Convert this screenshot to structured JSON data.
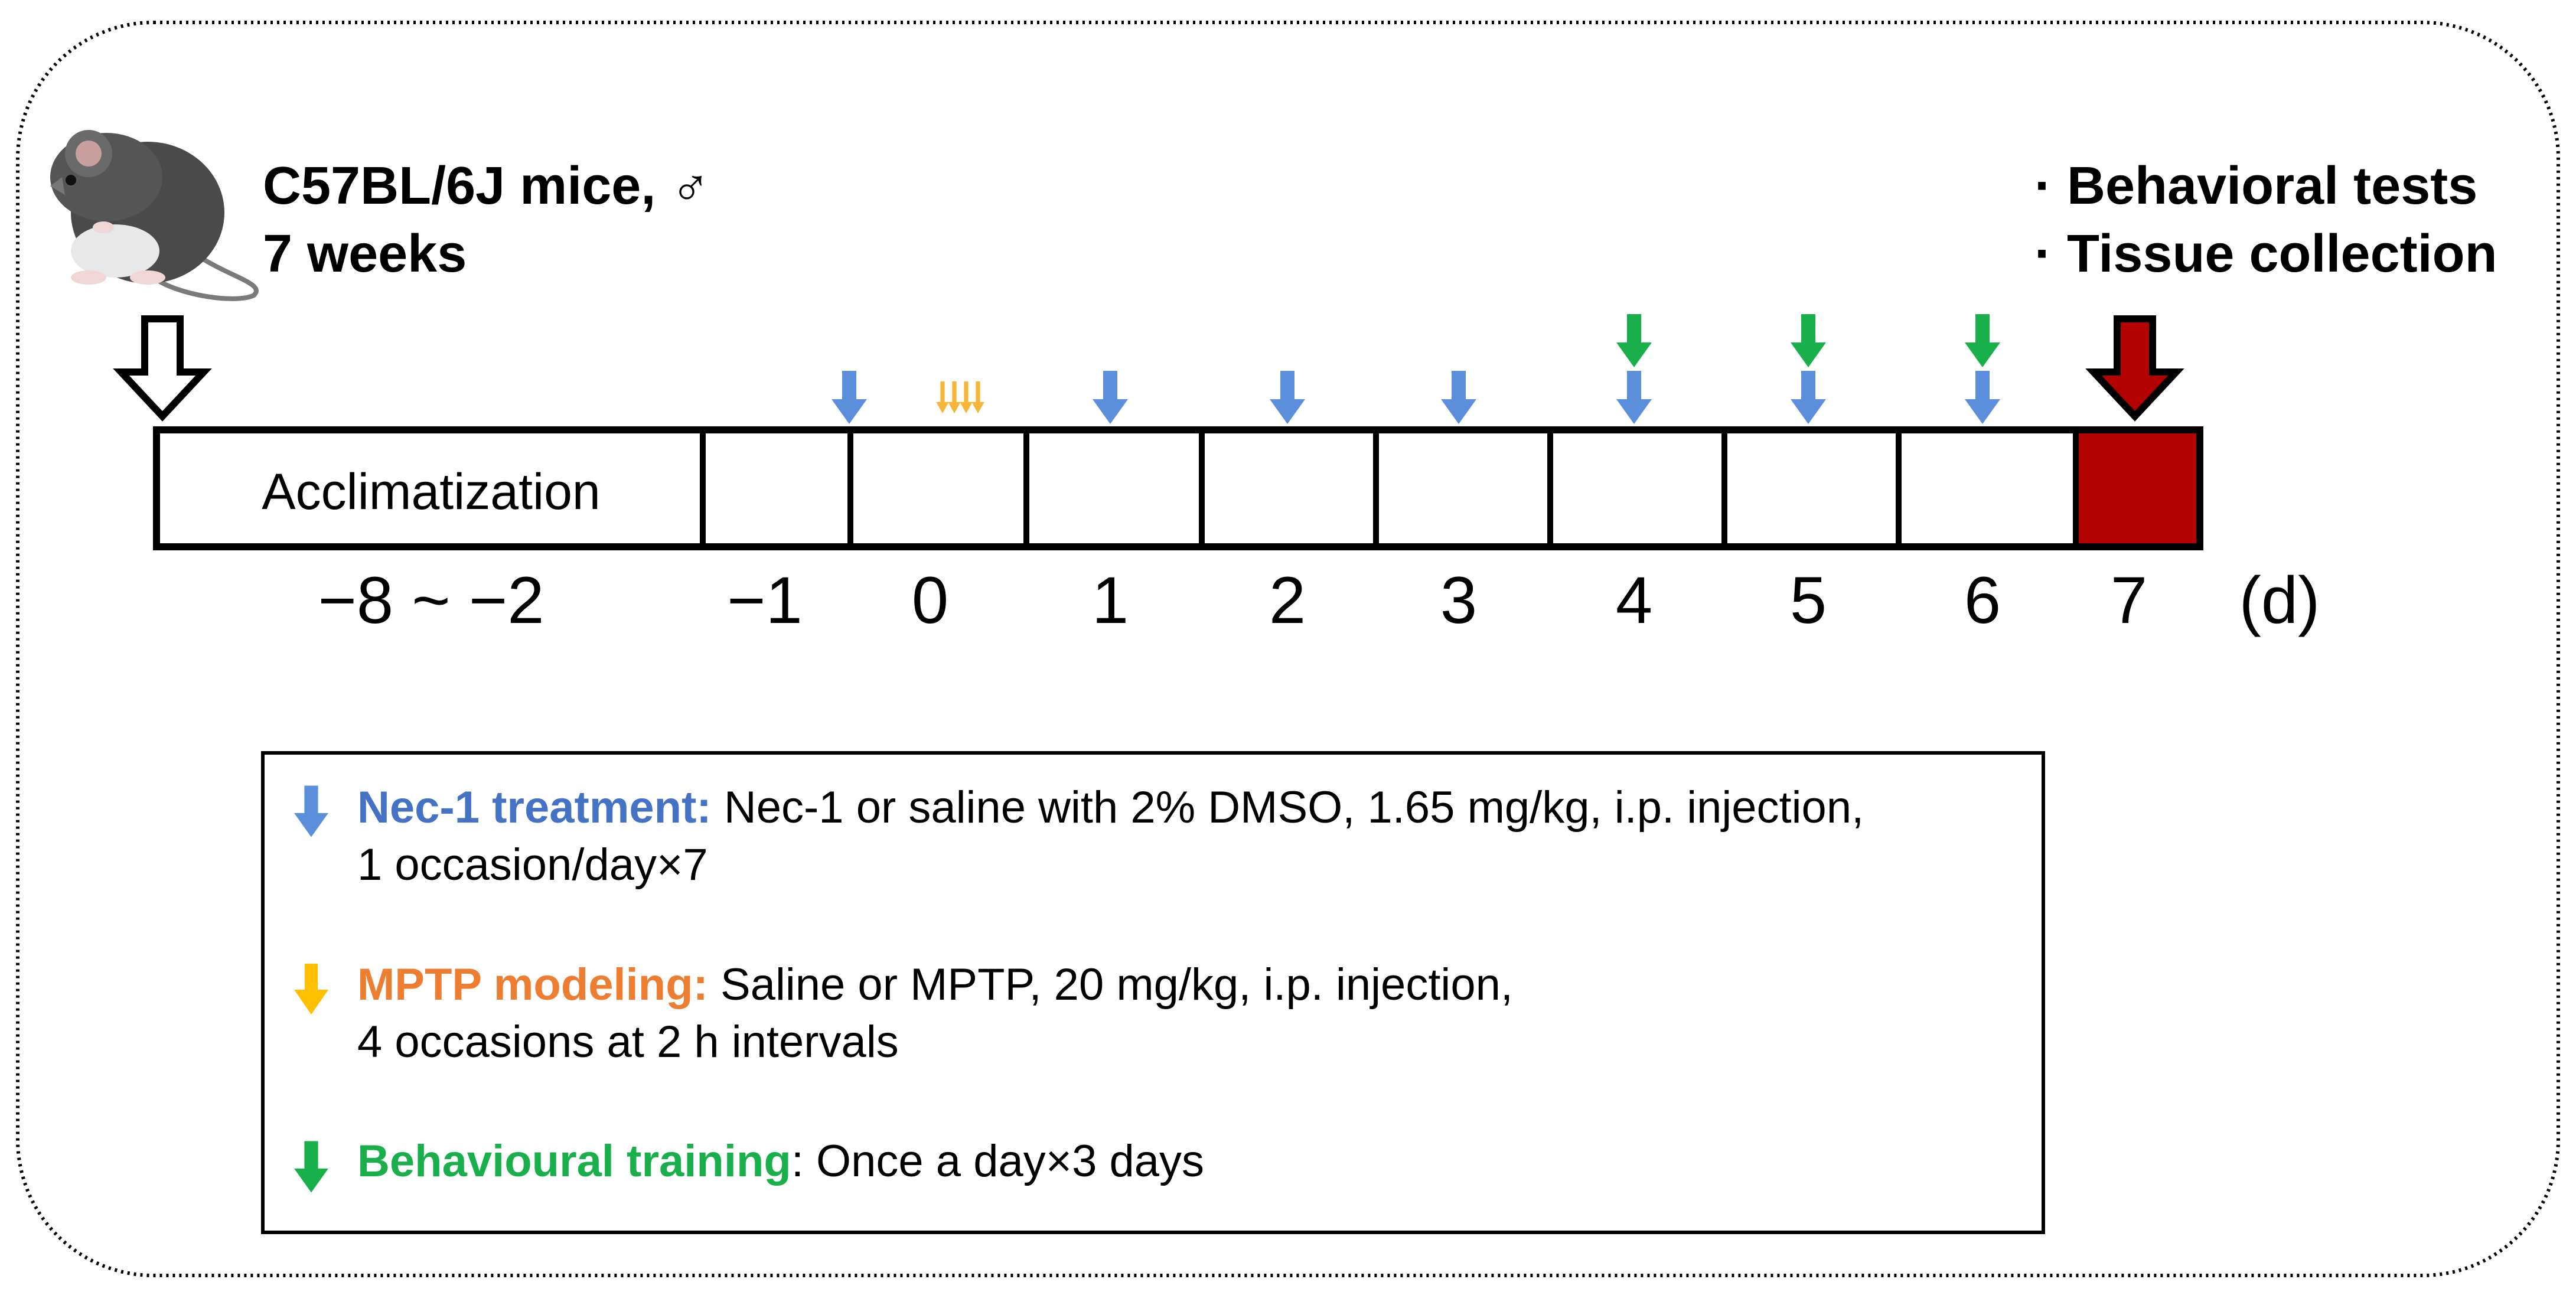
{
  "header": {
    "subject_line1": "C57BL/6J mice, ♂",
    "subject_line2": "7 weeks",
    "endpoint_bullets": [
      "· Behavioral tests",
      "· Tissue collection"
    ]
  },
  "timeline": {
    "acclimatization_label": "Acclimatization",
    "day_labels": [
      "−8 ~ −2",
      "−1",
      "0",
      "1",
      "2",
      "3",
      "4",
      "5",
      "6",
      "7"
    ],
    "unit_label": "(d)",
    "nec1_injection_days": [
      "−1",
      "1",
      "2",
      "3",
      "4",
      "5",
      "6"
    ],
    "mptp_injection_day": "0",
    "mptp_injections_count": 4,
    "training_days": [
      "4",
      "5",
      "6"
    ],
    "endpoint_day": "7"
  },
  "legend": {
    "nec1": {
      "title": "Nec-1 treatment:",
      "text_line1": " Nec-1 or saline with 2% DMSO, 1.65 mg/kg, i.p. injection,",
      "text_line2": "1 occasion/day×7"
    },
    "mptp": {
      "title": "MPTP modeling:",
      "text_line1": " Saline or MPTP, 20 mg/kg, i.p. injection,",
      "text_line2": "4 occasions at 2 h intervals"
    },
    "training": {
      "title": "Behavioural training",
      "text_line1": ": Once a day×3 days"
    }
  },
  "colors": {
    "nec1": "#5B8EDB",
    "mptp_title": "#ED7D31",
    "mptp_arrow": "#F7B53A",
    "training": "#19B04B",
    "endpoint_fill": "#B30000",
    "outline": "#000000"
  },
  "icons": {
    "mouse": "mouse-illustration",
    "start_arrow": "hollow-down-arrow-icon",
    "end_arrow": "red-down-arrow-icon"
  }
}
